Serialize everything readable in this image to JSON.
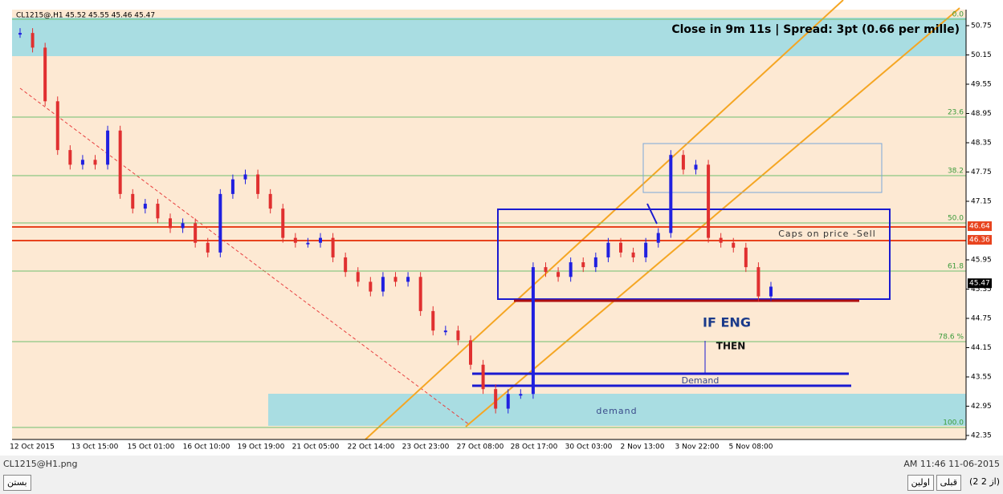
{
  "header": {
    "symbol_line": "CL1215@,H1  45.52 45.55 45.46 45.47",
    "countdown": "Close in 9m 11s | Spread: 3pt (0.66 per mille)"
  },
  "price_axis": {
    "ticks": [
      50.75,
      50.15,
      49.55,
      48.95,
      48.35,
      47.75,
      47.15,
      45.95,
      45.35,
      44.75,
      44.15,
      43.55,
      42.95,
      42.35
    ],
    "tags": [
      {
        "value": 46.64,
        "color": "#e8431e"
      },
      {
        "value": 46.36,
        "color": "#e8431e"
      },
      {
        "value": 45.47,
        "color": "#000000"
      }
    ]
  },
  "fib_levels": [
    "0.0",
    "23.6",
    "38.2",
    "50.0",
    "61.8",
    "78.6 %",
    "100.0"
  ],
  "time_axis": [
    "12 Oct 2015",
    "13 Oct 15:00",
    "15 Oct 01:00",
    "16 Oct 10:00",
    "19 Oct 19:00",
    "21 Oct 05:00",
    "22 Oct 14:00",
    "23 Oct 23:00",
    "27 Oct 08:00",
    "28 Oct 17:00",
    "30 Oct 03:00",
    "2 Nov 13:00",
    "3 Nov 22:00",
    "5 Nov 08:00"
  ],
  "prices": [
    50.6,
    50.3,
    49.2,
    48.2,
    47.9,
    48.0,
    47.9,
    48.6,
    47.3,
    47.0,
    47.1,
    46.8,
    46.6,
    46.7,
    46.3,
    46.1,
    47.3,
    47.6,
    47.7,
    47.3,
    47.0,
    46.4,
    46.3,
    46.3,
    46.4,
    46.0,
    45.7,
    45.5,
    45.3,
    45.6,
    45.5,
    45.6,
    44.9,
    44.5,
    44.5,
    44.3,
    43.8,
    43.3,
    42.9,
    43.2,
    43.2,
    45.8,
    45.7,
    45.6,
    45.9,
    45.8,
    46.0,
    46.3,
    46.1,
    46.0,
    46.3,
    46.5,
    48.1,
    47.8,
    47.9,
    46.4,
    46.3,
    46.2,
    45.8,
    45.2,
    45.4
  ],
  "annotations": {
    "caps": "Caps on price -Sell",
    "if_eng": "IF ENG",
    "then": "THEN",
    "demand_upper": "Demand",
    "demand_zone": "demand"
  },
  "footer": {
    "filename": "CL1215@H1.png",
    "timestamp": "AM 11:46 11-06-2015",
    "close": "بستن",
    "prev": "قبلی",
    "first": "اولین",
    "count": "(2 از 2)"
  }
}
